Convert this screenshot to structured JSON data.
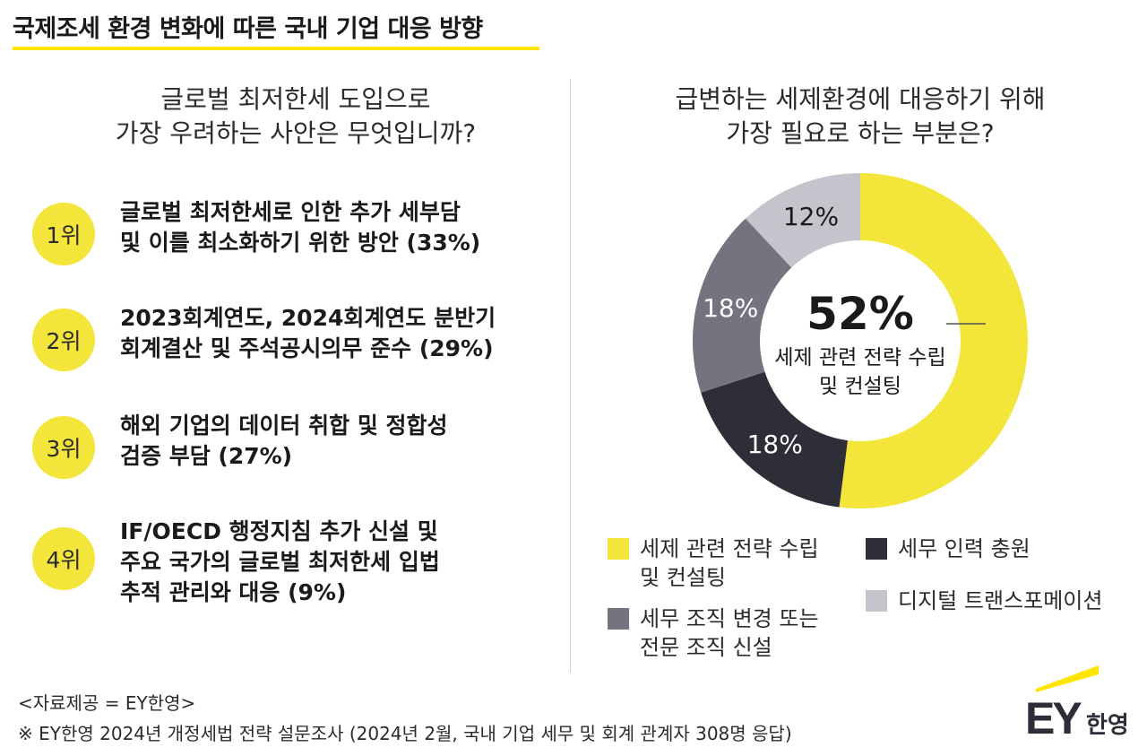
{
  "header": {
    "title": "국제조세 환경 변화에 따른 국내 기업 대응 방향"
  },
  "left": {
    "question_lines": [
      "글로벌 최저한세 도입으로",
      "가장 우려하는 사안은 무엇입니까?"
    ],
    "ranks": [
      {
        "badge": "1위",
        "lines": [
          "글로벌 최저한세로 인한 추가 세부담",
          "및 이를 최소화하기 위한 방안 (33%)"
        ]
      },
      {
        "badge": "2위",
        "lines": [
          "2023회계연도, 2024회계연도 분반기",
          "회계결산 및 주석공시의무 준수 (29%)"
        ]
      },
      {
        "badge": "3위",
        "lines": [
          "해외 기업의 데이터 취합 및 정합성",
          "검증 부담 (27%)"
        ]
      },
      {
        "badge": "4위",
        "lines": [
          "IF/OECD 행정지침 추가 신설 및",
          "주요 국가의 글로벌 최저한세 입법",
          "추적 관리와 대응 (9%)"
        ]
      }
    ]
  },
  "right": {
    "question_lines": [
      "급변하는 세제환경에 대응하기 위해",
      "가장 필요로 하는 부분은?"
    ]
  },
  "chart_data": {
    "type": "pie",
    "style": "donut",
    "title": "급변하는 세제환경에 대응하기 위해 가장 필요로 하는 부분은?",
    "slices": [
      {
        "label_lines": [
          "세제 관련 전략 수립",
          "및 컨설팅"
        ],
        "value": 52,
        "value_label": "52%",
        "color": "#f3e53a"
      },
      {
        "label_lines": [
          "세무 인력 충원"
        ],
        "value": 18,
        "value_label": "18%",
        "color": "#2e2e38"
      },
      {
        "label_lines": [
          "세무 조직 변경 또는",
          "전문 조직 신설"
        ],
        "value": 18,
        "value_label": "18%",
        "color": "#747480"
      },
      {
        "label_lines": [
          "디지털 트랜스포메이션"
        ],
        "value": 12,
        "value_label": "12%",
        "color": "#c4c4cd"
      }
    ],
    "center_value": "52%",
    "center_label_lines": [
      "세제 관련 전략 수립",
      "및 컨설팅"
    ],
    "legend": "bottom"
  },
  "footer": {
    "source": "<자료제공 = EY한영>",
    "note": "※ EY한영 2024년 개정세법 전략 설문조사 (2024년 2월, 국내 기업 세무 및 회계 관계자 308명 응답)"
  },
  "logo": {
    "text": "EY",
    "sub": "한영",
    "color": "#ffe600"
  }
}
